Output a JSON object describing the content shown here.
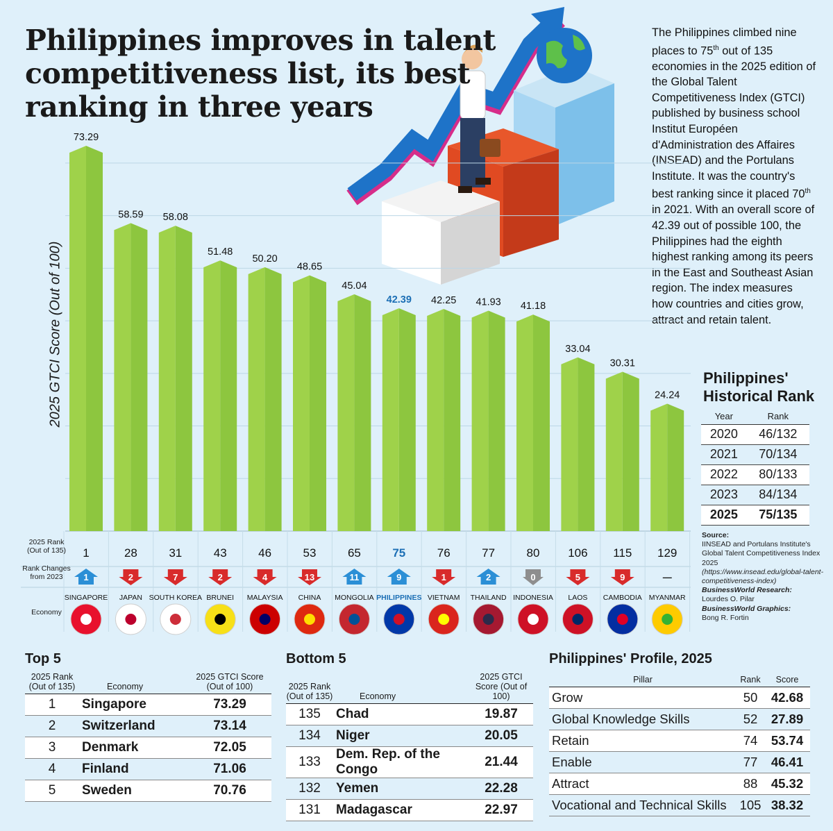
{
  "title": "Philippines improves in talent competitiveness list, its best ranking in three years",
  "blurb": {
    "p1": "The Philippines climbed nine places to 75",
    "sup1": "th",
    "p2": " out of 135 economies in the 2025 edition of the Global Talent Competitiveness Index (GTCI) published by business school Institut Européen d'Administration des Affaires (INSEAD) and the Portulans Institute. It was the country's best ranking since it placed 70",
    "sup2": "th",
    "p3": " in 2021. With an overall score of 42.39 out of possible 100, the Philippines had the eighth highest ranking among its peers in the East and Southeast Asian region. The index measures how countries and cities grow, attract and retain talent."
  },
  "chart_data": {
    "type": "bar",
    "ylabel": "2025 GTCI Score (Out of 100)",
    "ylim": [
      0,
      80
    ],
    "categories": [
      "SINGAPORE",
      "JAPAN",
      "SOUTH KOREA",
      "BRUNEI",
      "MALAYSIA",
      "CHINA",
      "MONGOLIA",
      "PHILIPPINES",
      "VIETNAM",
      "THAILAND",
      "INDONESIA",
      "LAOS",
      "CAMBODIA",
      "MYANMAR"
    ],
    "values": [
      73.29,
      58.59,
      58.08,
      51.48,
      50.2,
      48.65,
      45.04,
      42.39,
      42.25,
      41.93,
      41.18,
      33.04,
      30.31,
      24.24
    ],
    "value_labels": [
      "73.29",
      "58.59",
      "58.08",
      "51.48",
      "50.20",
      "48.65",
      "45.04",
      "42.39",
      "42.25",
      "41.93",
      "41.18",
      "33.04",
      "30.31",
      "24.24"
    ],
    "ranks": [
      "1",
      "28",
      "31",
      "43",
      "46",
      "53",
      "65",
      "75",
      "76",
      "77",
      "80",
      "106",
      "115",
      "129"
    ],
    "rank_changes": [
      "1",
      "2",
      "7",
      "2",
      "4",
      "13",
      "11",
      "9",
      "1",
      "2",
      "0",
      "5",
      "9",
      "—"
    ],
    "rank_direction": [
      "up",
      "down",
      "down",
      "down",
      "down",
      "down",
      "up",
      "up",
      "down",
      "up",
      "none",
      "down",
      "down",
      "na"
    ],
    "highlight": "PHILIPPINES",
    "bar_color": "#8dc63f",
    "highlight_color": "#1c6fb5"
  },
  "row_labels": {
    "rank": "2025 Rank (Out of 135)",
    "change": "Rank Changes from 2023",
    "economy": "Economy"
  },
  "historical": {
    "title": "Philippines' Historical Rank",
    "headers": [
      "Year",
      "Rank"
    ],
    "rows": [
      [
        "2020",
        "46/132"
      ],
      [
        "2021",
        "70/134"
      ],
      [
        "2022",
        "80/133"
      ],
      [
        "2023",
        "84/134"
      ],
      [
        "2025",
        "75/135"
      ]
    ]
  },
  "source": {
    "label": "Source:",
    "text": "IINSEAD and Portulans Institute's Global Talent Competitiveness Index 2025",
    "url": "(https://www.insead.edu/global-talent-competitiveness-index)",
    "research_label": "BusinessWorld Research:",
    "research_name": "Lourdes O. Pilar",
    "graphics_label": "BusinessWorld Graphics:",
    "graphics_name": "Bong R. Fortin"
  },
  "top5": {
    "title": "Top 5",
    "headers": [
      "2025 Rank (Out of 135)",
      "Economy",
      "2025 GTCI Score (Out of 100)"
    ],
    "rows": [
      [
        "1",
        "Singapore",
        "73.29"
      ],
      [
        "2",
        "Switzerland",
        "73.14"
      ],
      [
        "3",
        "Denmark",
        "72.05"
      ],
      [
        "4",
        "Finland",
        "71.06"
      ],
      [
        "5",
        "Sweden",
        "70.76"
      ]
    ]
  },
  "bottom5": {
    "title": "Bottom 5",
    "headers": [
      "2025 Rank (Out of 135)",
      "Economy",
      "2025 GTCI Score (Out of 100)"
    ],
    "rows": [
      [
        "135",
        "Chad",
        "19.87"
      ],
      [
        "134",
        "Niger",
        "20.05"
      ],
      [
        "133",
        "Dem. Rep. of the Congo",
        "21.44"
      ],
      [
        "132",
        "Yemen",
        "22.28"
      ],
      [
        "131",
        "Madagascar",
        "22.97"
      ]
    ]
  },
  "profile": {
    "title": "Philippines' Profile, 2025",
    "headers": [
      "Pillar",
      "Rank",
      "Score"
    ],
    "rows": [
      [
        "Grow",
        "50",
        "42.68"
      ],
      [
        "Global Knowledge Skills",
        "52",
        "27.89"
      ],
      [
        "Retain",
        "74",
        "53.74"
      ],
      [
        "Enable",
        "77",
        "46.41"
      ],
      [
        "Attract",
        "88",
        "45.32"
      ],
      [
        "Vocational and Technical Skills",
        "105",
        "38.32"
      ]
    ]
  }
}
